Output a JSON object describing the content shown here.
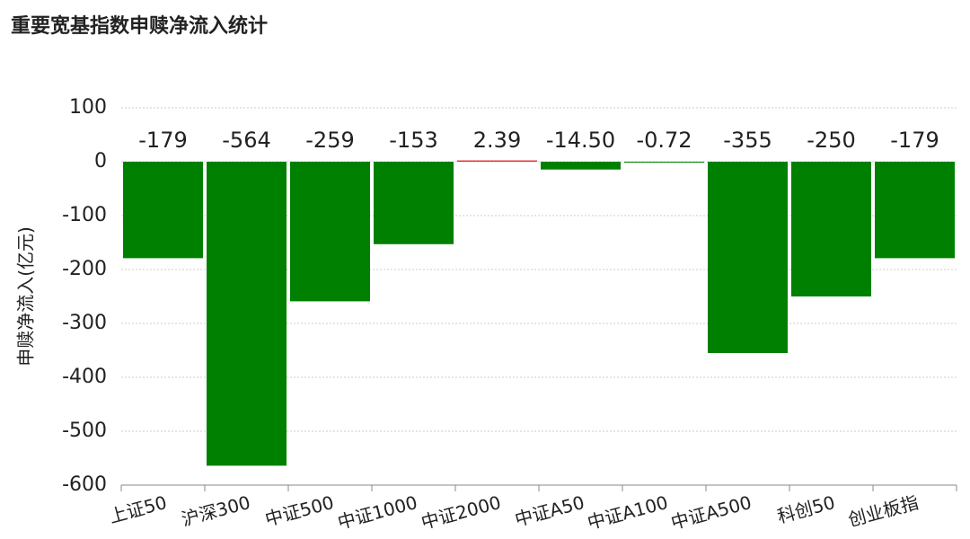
{
  "chart_data": {
    "type": "bar",
    "title": "重要宽基指数申赎净流入统计",
    "y_label": "申赎净流入(亿元)",
    "categories": [
      "上证50",
      "沪深300",
      "中证500",
      "中证1000",
      "中证2000",
      "中证A50",
      "中证A100",
      "中证A500",
      "科创50",
      "创业板指"
    ],
    "values": [
      -179,
      -564,
      -259,
      -153,
      2.39,
      -14.5,
      -0.72,
      -355,
      -250,
      -179
    ],
    "value_labels": [
      "-179",
      "-564",
      "-259",
      "-153",
      "2.39",
      "-14.50",
      "-0.72",
      "-355",
      "-250",
      "-179"
    ],
    "colors": [
      "#008000",
      "#008000",
      "#008000",
      "#008000",
      "#e03030",
      "#008000",
      "#008000",
      "#008000",
      "#008000",
      "#008000"
    ],
    "ylim": [
      -600,
      100
    ],
    "yticks": [
      -600,
      -500,
      -400,
      -300,
      -200,
      -100,
      0,
      100
    ],
    "grid": true
  }
}
